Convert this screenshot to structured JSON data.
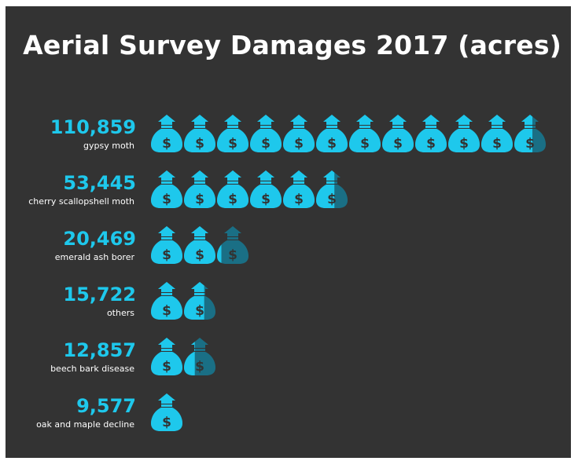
{
  "colors": {
    "background": "#333333",
    "accent": "#1ec8ec",
    "icon_faded": "#1a6f85",
    "text": "#ffffff"
  },
  "icon": "money-bag-icon",
  "chart_data": {
    "type": "bar",
    "title": "Aerial Survey Damages 2017 (acres)",
    "xlabel": "",
    "ylabel": "",
    "categories": [
      "gypsy moth",
      "cherry scallopshell moth",
      "emerald ash borer",
      "others",
      "beech bark disease",
      "oak and maple decline"
    ],
    "values": [
      110859,
      53445,
      20469,
      15722,
      12857,
      9577
    ],
    "value_labels": [
      "110,859",
      "53,445",
      "20,469",
      "15,722",
      "12,857",
      "9,577"
    ],
    "units_per_icon": 9577
  }
}
